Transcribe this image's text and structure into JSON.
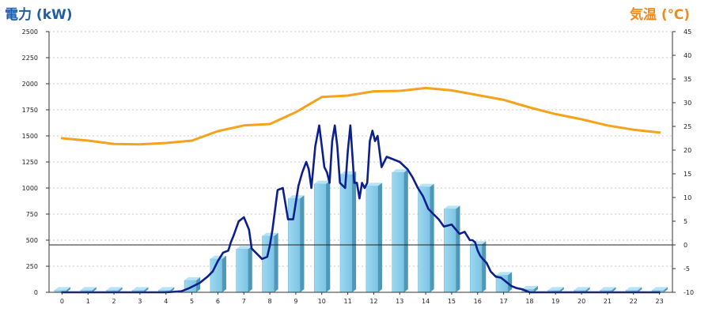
{
  "chart_data": {
    "type": "bar",
    "title_left": "電力 (kW)",
    "title_right": "気温 (℃)",
    "categories": [
      "0",
      "1",
      "2",
      "3",
      "4",
      "5",
      "6",
      "7",
      "8",
      "9",
      "10",
      "11",
      "12",
      "13",
      "14",
      "15",
      "16",
      "17",
      "18",
      "19",
      "20",
      "21",
      "22",
      "23"
    ],
    "y_left": {
      "min": 0,
      "max": 2500,
      "ticks": [
        0,
        250,
        500,
        750,
        1000,
        1250,
        1500,
        1750,
        2000,
        2250,
        2500
      ]
    },
    "y_right": {
      "min": -10,
      "max": 45,
      "ticks": [
        -10,
        -5,
        0,
        5,
        10,
        15,
        20,
        25,
        30,
        35,
        40,
        45
      ]
    },
    "reference_line": {
      "axis": "right",
      "value": 0
    },
    "grid": true,
    "series": [
      {
        "type": "bar",
        "axis": "left",
        "color": "#87cdea",
        "values": [
          20,
          20,
          20,
          20,
          20,
          115,
          320,
          415,
          540,
          900,
          1040,
          1130,
          1020,
          1150,
          1010,
          800,
          460,
          165,
          30,
          20,
          20,
          20,
          20,
          20
        ]
      },
      {
        "type": "line",
        "axis": "left",
        "color": "#0d1f8c",
        "x": [
          0,
          1,
          2,
          3,
          4,
          4.6,
          4.9,
          5.3,
          5.6,
          5.8,
          6.0,
          6.2,
          6.4,
          6.5,
          6.6,
          6.8,
          7.0,
          7.2,
          7.3,
          7.5,
          7.7,
          7.9,
          8.0,
          8.1,
          8.3,
          8.5,
          8.7,
          8.9,
          9.1,
          9.25,
          9.4,
          9.5,
          9.6,
          9.75,
          9.9,
          10.0,
          10.1,
          10.2,
          10.3,
          10.4,
          10.5,
          10.6,
          10.7,
          10.9,
          11.0,
          11.1,
          11.25,
          11.35,
          11.45,
          11.55,
          11.65,
          11.75,
          11.85,
          11.95,
          12.05,
          12.15,
          12.3,
          12.5,
          12.7,
          13.0,
          13.3,
          13.5,
          13.7,
          13.9,
          14.1,
          14.3,
          14.5,
          14.7,
          15.0,
          15.3,
          15.5,
          15.7,
          15.8,
          15.9,
          16.0,
          16.1,
          16.2,
          16.35,
          16.5,
          16.7,
          16.9,
          17.1,
          17.3,
          17.5,
          17.7,
          17.85,
          18,
          19,
          20,
          21,
          22,
          23
        ],
        "y": [
          0,
          0,
          0,
          0,
          0,
          10,
          40,
          90,
          150,
          200,
          300,
          380,
          400,
          480,
          540,
          680,
          720,
          600,
          420,
          370,
          320,
          340,
          450,
          600,
          980,
          1000,
          700,
          700,
          1020,
          1150,
          1250,
          1180,
          1000,
          1400,
          1600,
          1400,
          1200,
          1150,
          1050,
          1450,
          1600,
          1400,
          1050,
          1000,
          1350,
          1600,
          1050,
          1050,
          900,
          1050,
          1000,
          1050,
          1450,
          1550,
          1450,
          1500,
          1200,
          1300,
          1280,
          1250,
          1180,
          1100,
          1000,
          920,
          800,
          750,
          700,
          630,
          650,
          560,
          580,
          500,
          500,
          480,
          400,
          350,
          320,
          280,
          200,
          150,
          140,
          100,
          60,
          40,
          30,
          15,
          0,
          0,
          0,
          0,
          0,
          0
        ]
      },
      {
        "type": "line",
        "axis": "right",
        "color": "#f6a21b",
        "x": [
          0,
          1,
          2,
          3,
          4,
          5,
          6,
          7,
          8,
          9,
          10,
          11,
          12,
          13,
          14,
          15,
          16,
          17,
          18,
          19,
          20,
          21,
          22,
          23
        ],
        "y": [
          22.5,
          22.0,
          21.3,
          21.2,
          21.5,
          22.0,
          24.0,
          25.2,
          25.5,
          28.0,
          31.2,
          31.5,
          32.4,
          32.5,
          33.1,
          32.6,
          31.6,
          30.6,
          29.0,
          27.6,
          26.5,
          25.2,
          24.3,
          23.7
        ]
      }
    ]
  }
}
